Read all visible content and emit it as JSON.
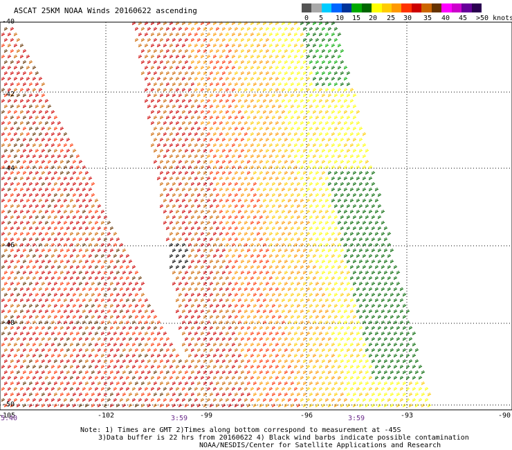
{
  "title": "ASCAT 25KM NOAA Winds 20160622 ascending",
  "colorbar": {
    "colors": [
      "#545454",
      "#a8a8a8",
      "#00ccff",
      "#0066ff",
      "#003399",
      "#00aa00",
      "#006600",
      "#ffff00",
      "#ffcc00",
      "#ff9900",
      "#ff3300",
      "#cc0000",
      "#cc6600",
      "#663300",
      "#ff00ff",
      "#cc00cc",
      "#660099",
      "#2a0050"
    ],
    "labels": [
      "0",
      "5",
      "10",
      "15",
      "20",
      "25",
      "30",
      "35",
      "40",
      "45",
      ">50 knots"
    ]
  },
  "map": {
    "lon_labels": [
      "-105",
      "-102",
      "-99",
      "-96",
      "-93",
      "-90"
    ],
    "lat_labels": [
      "-40",
      "-42",
      "-44",
      "-46",
      "-48",
      "-50"
    ],
    "time_labels": [
      "5:40",
      "3:59",
      "3:59"
    ]
  },
  "notes": {
    "line1": "Note: 1) Times are GMT 2)Times along bottom correspond to measurement at -45S",
    "line2": "3)Data buffer is 22 hrs from 20160622 4) Black wind barbs indicate possible contamination",
    "line3": "NOAA/NESDIS/Center for Satellite Applications and Research"
  }
}
